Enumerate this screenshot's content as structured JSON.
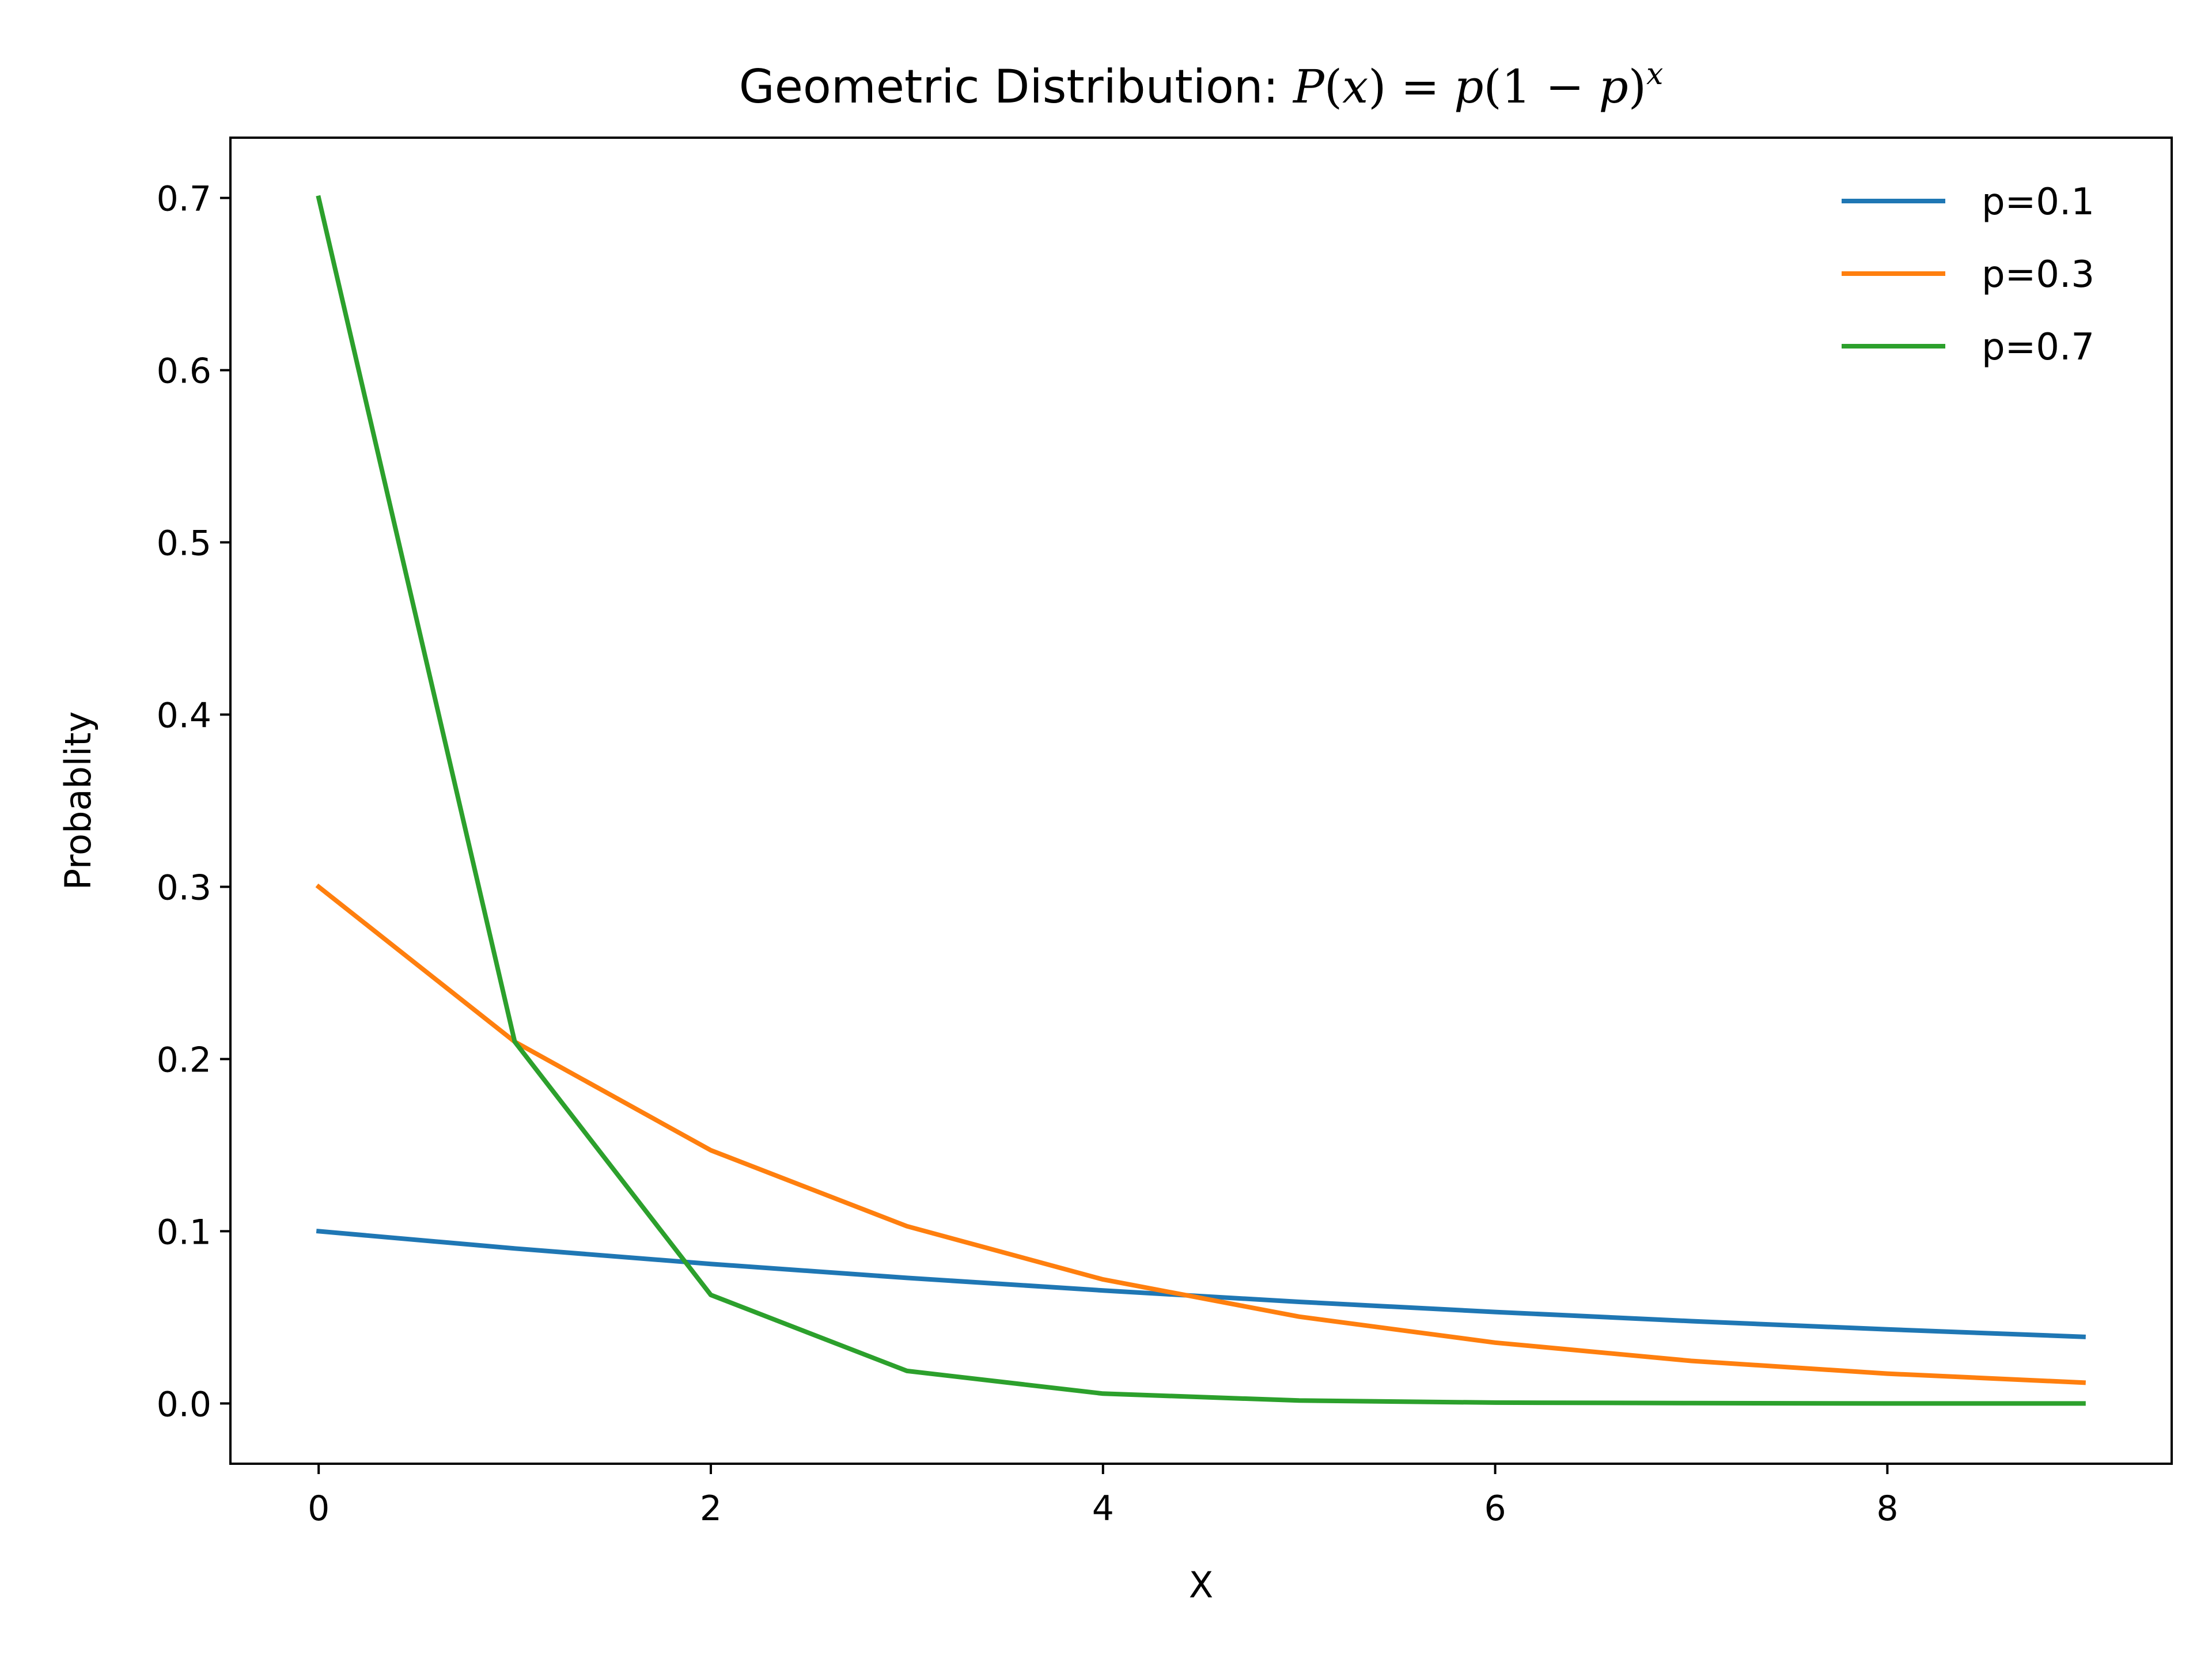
{
  "chart_data": {
    "type": "line",
    "title": "Geometric Distribution: P(x) = p(1 − p)^x",
    "title_parts": {
      "prefix": "Geometric Distribution: ",
      "P": "P",
      "open1": "(",
      "x1": "x",
      "close1": ")",
      "eq": " = ",
      "p1": "p",
      "open2": "(1 − ",
      "p2": "p",
      "close2": ")",
      "sup": "x"
    },
    "xlabel": "X",
    "ylabel": "Probablity",
    "xlim": [
      -0.45,
      9.45
    ],
    "ylim": [
      -0.035,
      0.735
    ],
    "xticks": [
      0,
      2,
      4,
      6,
      8
    ],
    "yticks": [
      0.0,
      0.1,
      0.2,
      0.3,
      0.4,
      0.5,
      0.6,
      0.7
    ],
    "x": [
      0,
      1,
      2,
      3,
      4,
      5,
      6,
      7,
      8,
      9
    ],
    "grid": false,
    "legend_position": "top-right",
    "series": [
      {
        "name": "p=0.1",
        "color": "#1f77b4",
        "values": [
          0.1,
          0.09,
          0.081,
          0.0729,
          0.0656,
          0.059,
          0.0531,
          0.0478,
          0.043,
          0.0387
        ]
      },
      {
        "name": "p=0.3",
        "color": "#ff7f0e",
        "values": [
          0.3,
          0.21,
          0.147,
          0.1029,
          0.072,
          0.0504,
          0.0353,
          0.0247,
          0.0173,
          0.0121
        ]
      },
      {
        "name": "p=0.7",
        "color": "#2ca02c",
        "values": [
          0.7,
          0.21,
          0.063,
          0.0189,
          0.0057,
          0.0017,
          0.0005,
          0.0002,
          0.0,
          0.0
        ]
      }
    ]
  }
}
